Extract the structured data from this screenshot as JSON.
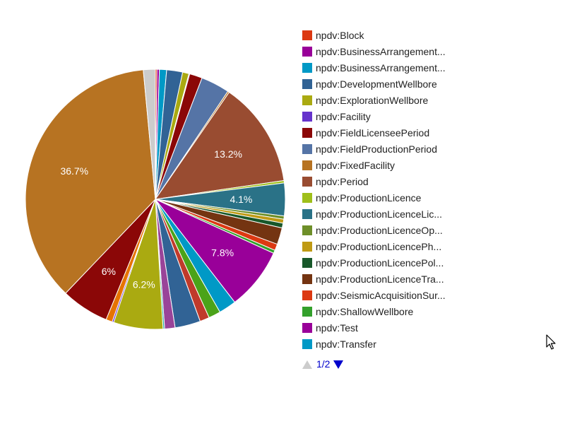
{
  "chart_data": {
    "type": "pie",
    "legend_position": "right",
    "slices": [
      {
        "label": "npdv:Block",
        "value": 0.2,
        "color": "#dc3912"
      },
      {
        "label": "npdv:BusinessArrangement...",
        "value": 0.3,
        "color": "#990099"
      },
      {
        "label": "npdv:BusinessArrangement...",
        "value": 0.9,
        "color": "#0099c6"
      },
      {
        "label": "npdv:DevelopmentWellbore",
        "value": 2.0,
        "color": "#316395"
      },
      {
        "label": "npdv:ExplorationWellbore",
        "value": 0.8,
        "color": "#aaaa11"
      },
      {
        "label": "npdv:Facility",
        "value": 0.1,
        "color": "#6633cc"
      },
      {
        "label": "npdv:FieldLicenseePeriod",
        "value": 1.6,
        "color": "#8b0707"
      },
      {
        "label": "npdv:FieldProductionPeriod",
        "value": 3.6,
        "color": "#5574a6"
      },
      {
        "label": "npdv:FixedFacility",
        "value": 0.2,
        "color": "#b77322"
      },
      {
        "label": "npdv:Period",
        "value": 13.2,
        "color": "#994c31",
        "display": "13.2%"
      },
      {
        "label": "npdv:ProductionLicence",
        "value": 0.3,
        "color": "#9fbf1a"
      },
      {
        "label": "npdv:ProductionLicenceLic...",
        "value": 4.1,
        "color": "#2a7287",
        "display": "4.1%"
      },
      {
        "label": "npdv:ProductionLicenceOp...",
        "value": 0.4,
        "color": "#6e8f29"
      },
      {
        "label": "npdv:ProductionLicencePh...",
        "value": 0.5,
        "color": "#bf9a14"
      },
      {
        "label": "npdv:ProductionLicencePol...",
        "value": 0.6,
        "color": "#18582a"
      },
      {
        "label": "npdv:ProductionLicenceTra...",
        "value": 2.1,
        "color": "#743411"
      },
      {
        "label": "npdv:SeismicAcquisitionSur...",
        "value": 0.8,
        "color": "#dc3912"
      },
      {
        "label": "npdv:ShallowWellbore",
        "value": 0.4,
        "color": "#33a02c"
      },
      {
        "label": "npdv:Test",
        "value": 7.8,
        "color": "#990099",
        "display": "7.8%"
      },
      {
        "label": "npdv:Transfer",
        "value": 2.2,
        "color": "#0099c6"
      },
      {
        "label": "",
        "value": 1.5,
        "color": "#4ba319"
      },
      {
        "label": "",
        "value": 1.2,
        "color": "#c03a2b"
      },
      {
        "label": "",
        "value": 3.2,
        "color": "#316395"
      },
      {
        "label": "",
        "value": 1.3,
        "color": "#994499"
      },
      {
        "label": "",
        "value": 0.2,
        "color": "#22aa99"
      },
      {
        "label": "",
        "value": 6.2,
        "color": "#aaaa11",
        "display": "6.2%"
      },
      {
        "label": "",
        "value": 0.2,
        "color": "#6633cc"
      },
      {
        "label": "",
        "value": 0.8,
        "color": "#e67300"
      },
      {
        "label": "",
        "value": 6.0,
        "color": "#8b0707",
        "display": "6%"
      },
      {
        "label": "",
        "value": 36.7,
        "color": "#b77322",
        "display": "36.7%"
      },
      {
        "label": "",
        "value": 1.5,
        "color": "#cccccc"
      }
    ]
  },
  "legend": {
    "items": [
      {
        "label": "npdv:Block",
        "color": "#dc3912"
      },
      {
        "label": "npdv:BusinessArrangement...",
        "color": "#990099"
      },
      {
        "label": "npdv:BusinessArrangement...",
        "color": "#0099c6"
      },
      {
        "label": "npdv:DevelopmentWellbore",
        "color": "#316395"
      },
      {
        "label": "npdv:ExplorationWellbore",
        "color": "#aaaa11"
      },
      {
        "label": "npdv:Facility",
        "color": "#6633cc"
      },
      {
        "label": "npdv:FieldLicenseePeriod",
        "color": "#8b0707"
      },
      {
        "label": "npdv:FieldProductionPeriod",
        "color": "#5574a6"
      },
      {
        "label": "npdv:FixedFacility",
        "color": "#b77322"
      },
      {
        "label": "npdv:Period",
        "color": "#994c31"
      },
      {
        "label": "npdv:ProductionLicence",
        "color": "#9fbf1a"
      },
      {
        "label": "npdv:ProductionLicenceLic...",
        "color": "#2a7287"
      },
      {
        "label": "npdv:ProductionLicenceOp...",
        "color": "#6e8f29"
      },
      {
        "label": "npdv:ProductionLicencePh...",
        "color": "#bf9a14"
      },
      {
        "label": "npdv:ProductionLicencePol...",
        "color": "#18582a"
      },
      {
        "label": "npdv:ProductionLicenceTra...",
        "color": "#743411"
      },
      {
        "label": "npdv:SeismicAcquisitionSur...",
        "color": "#dc3912"
      },
      {
        "label": "npdv:ShallowWellbore",
        "color": "#33a02c"
      },
      {
        "label": "npdv:Test",
        "color": "#990099"
      },
      {
        "label": "npdv:Transfer",
        "color": "#0099c6"
      }
    ]
  },
  "pager": {
    "text": "1/2",
    "prev_icon": "triangle-up-icon",
    "next_icon": "triangle-down-icon",
    "active_color": "#0000cc",
    "disabled_color": "#cccccc"
  },
  "cursor": {
    "icon": "mouse-pointer-icon"
  }
}
